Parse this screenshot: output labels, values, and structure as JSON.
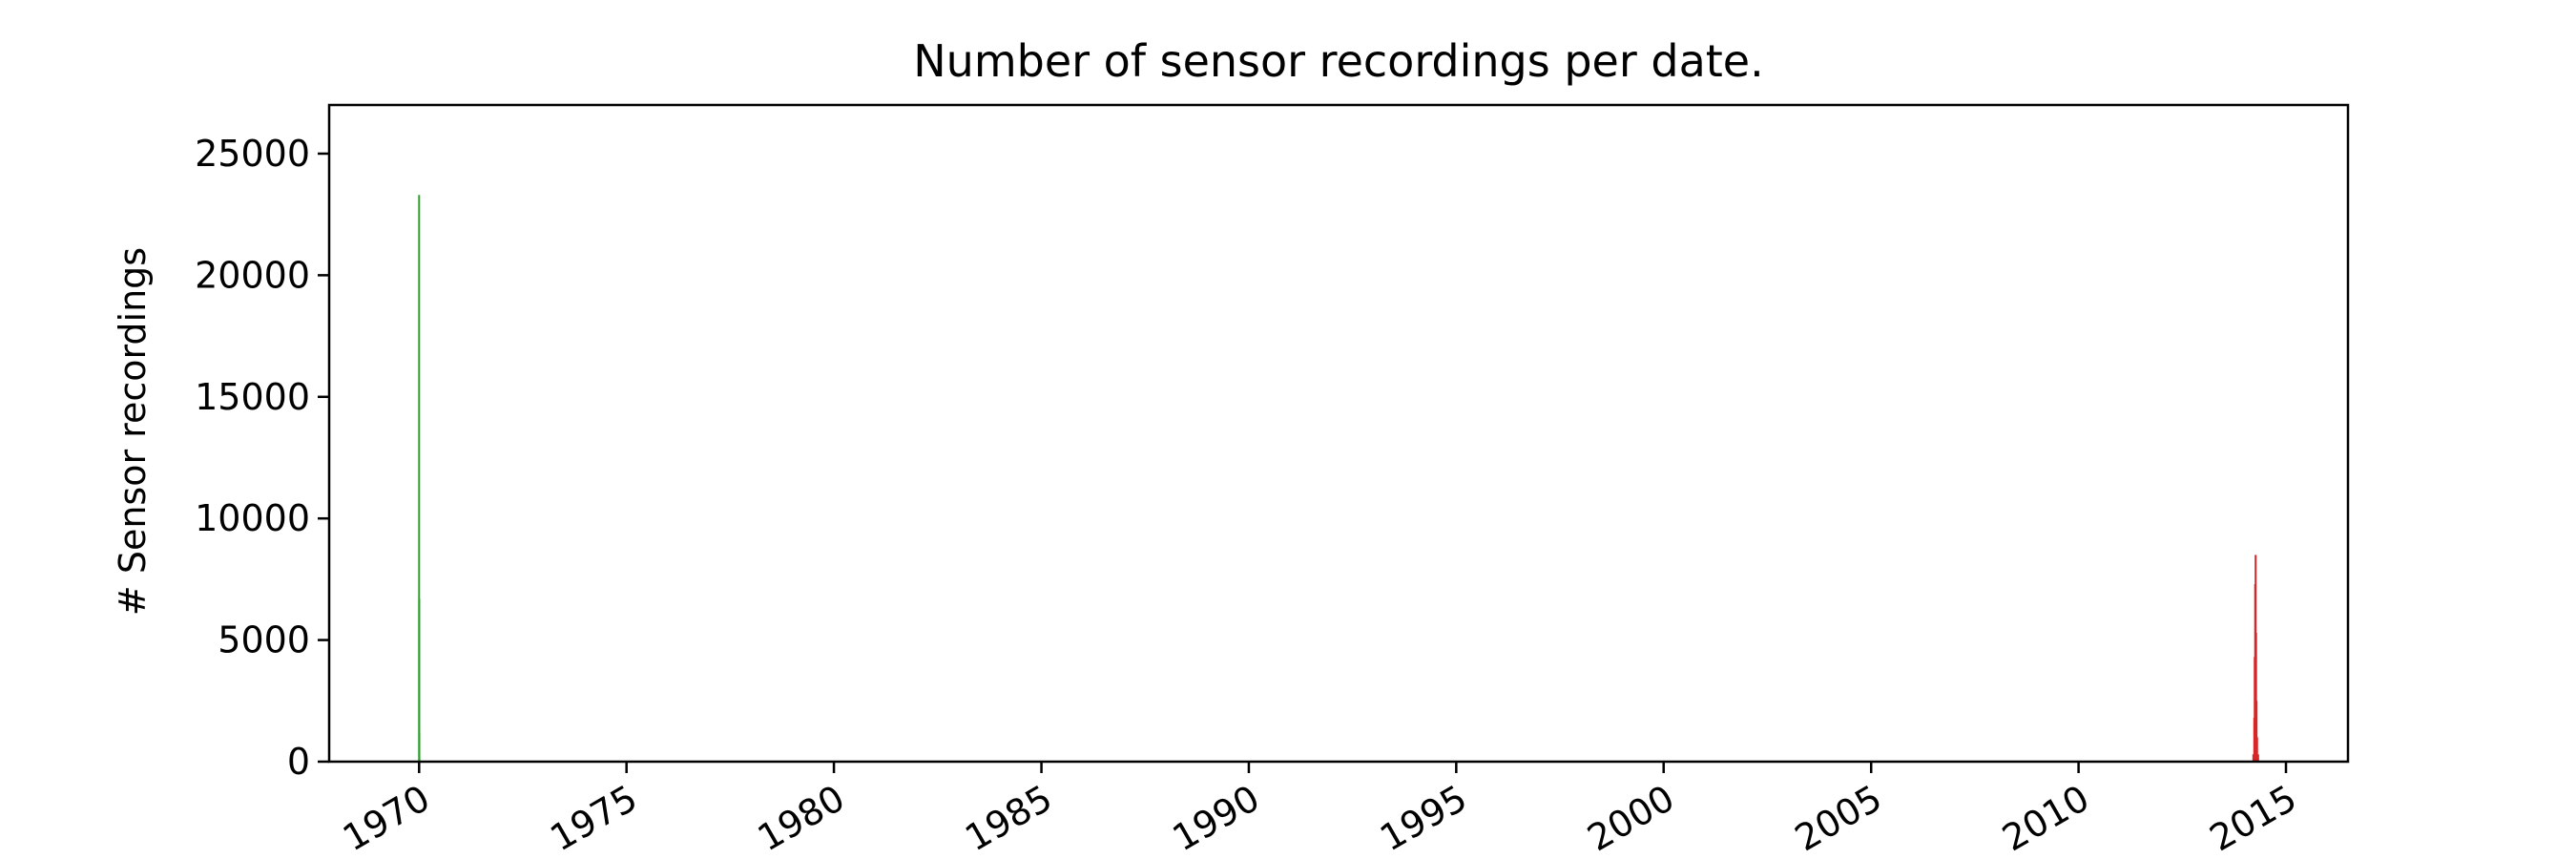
{
  "chart_data": {
    "type": "bar",
    "title": "Number of sensor recordings per date.",
    "xlabel": "",
    "ylabel": "# Sensor recordings",
    "xlim": [
      "1967-11-01",
      "2016-06-30"
    ],
    "ylim": [
      0,
      27000
    ],
    "x_ticks": [
      "1970",
      "1975",
      "1980",
      "1985",
      "1990",
      "1995",
      "2000",
      "2005",
      "2010",
      "2015"
    ],
    "y_ticks": [
      0,
      5000,
      10000,
      15000,
      20000,
      25000
    ],
    "grid": false,
    "series": [
      {
        "color": "#2ca02c",
        "points": [
          {
            "date": "1970-01-01",
            "value": 23300
          },
          {
            "date": "1970-01-02",
            "value": 6700
          },
          {
            "date": "1970-01-03",
            "value": 1200
          }
        ]
      },
      {
        "color": "#d62728",
        "points": [
          {
            "date": "2014-03-20",
            "value": 300
          },
          {
            "date": "2014-03-28",
            "value": 1800
          },
          {
            "date": "2014-04-01",
            "value": 4300
          },
          {
            "date": "2014-04-05",
            "value": 7300
          },
          {
            "date": "2014-04-09",
            "value": 8500
          },
          {
            "date": "2014-04-13",
            "value": 5300
          },
          {
            "date": "2014-04-17",
            "value": 2500
          },
          {
            "date": "2014-04-22",
            "value": 1000
          },
          {
            "date": "2014-05-01",
            "value": 300
          }
        ]
      }
    ]
  }
}
